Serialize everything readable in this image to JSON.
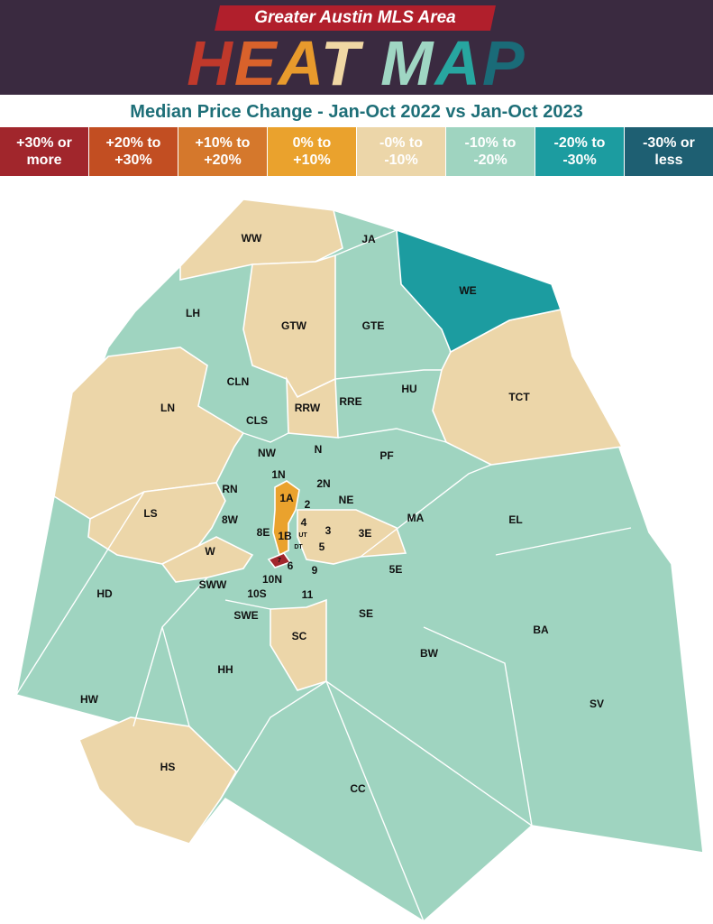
{
  "header": {
    "banner": "Greater Austin MLS Area",
    "title_parts": [
      {
        "text": "H",
        "color": "#c0392b"
      },
      {
        "text": "E",
        "color": "#d9622b"
      },
      {
        "text": "A",
        "color": "#e89a2c"
      },
      {
        "text": "T",
        "color": "#f0d7a4"
      },
      {
        "text": " ",
        "color": "#ffffff"
      },
      {
        "text": "M",
        "color": "#9fd6c3"
      },
      {
        "text": "A",
        "color": "#27a6a0"
      },
      {
        "text": "P",
        "color": "#1a6b78"
      }
    ],
    "subtitle": "Median Price Change - Jan-Oct 2022 vs Jan-Oct 2023"
  },
  "legend": [
    {
      "label": "+30% or\nmore",
      "bg": "#a1262c",
      "fg": "#ffffff"
    },
    {
      "label": "+20% to\n+30%",
      "bg": "#c24e22",
      "fg": "#ffffff"
    },
    {
      "label": "+10% to\n+20%",
      "bg": "#d5782c",
      "fg": "#ffffff"
    },
    {
      "label": "0% to\n+10%",
      "bg": "#eaa22d",
      "fg": "#ffffff"
    },
    {
      "label": "-0% to\n-10%",
      "bg": "#ecd6a9",
      "fg": "#ffffff"
    },
    {
      "label": "-10% to\n-20%",
      "bg": "#9fd4c0",
      "fg": "#ffffff"
    },
    {
      "label": "-20% to\n-30%",
      "bg": "#1c9ca0",
      "fg": "#ffffff"
    },
    {
      "label": "-30% or\nless",
      "bg": "#1e5f72",
      "fg": "#ffffff"
    }
  ],
  "colors": {
    "teal_light": "#9fd4c0",
    "tan": "#ecd6a9",
    "teal_dark": "#1c9ca0",
    "orange": "#eaa22d",
    "dark_red": "#a1262c"
  },
  "regions": [
    {
      "label": "WW",
      "color": "tan"
    },
    {
      "label": "JA",
      "color": "teal_light"
    },
    {
      "label": "WE",
      "color": "teal_dark"
    },
    {
      "label": "LH",
      "color": "teal_light"
    },
    {
      "label": "GTW",
      "color": "tan"
    },
    {
      "label": "GTE",
      "color": "teal_light"
    },
    {
      "label": "TCT",
      "color": "tan"
    },
    {
      "label": "CLN",
      "color": "teal_light"
    },
    {
      "label": "LN",
      "color": "tan"
    },
    {
      "label": "RRW",
      "color": "tan"
    },
    {
      "label": "RRE",
      "color": "teal_light"
    },
    {
      "label": "HU",
      "color": "teal_light"
    },
    {
      "label": "CLS",
      "color": "teal_light"
    },
    {
      "label": "NW",
      "color": "teal_light"
    },
    {
      "label": "N",
      "color": "teal_light"
    },
    {
      "label": "PF",
      "color": "teal_light"
    },
    {
      "label": "1N",
      "color": "teal_light"
    },
    {
      "label": "2N",
      "color": "teal_light"
    },
    {
      "label": "RN",
      "color": "teal_light"
    },
    {
      "label": "1A",
      "color": "orange"
    },
    {
      "label": "2",
      "color": "teal_light"
    },
    {
      "label": "NE",
      "color": "teal_light"
    },
    {
      "label": "LS",
      "color": "tan"
    },
    {
      "label": "8W",
      "color": "teal_light"
    },
    {
      "label": "4",
      "color": "tan"
    },
    {
      "label": "MA",
      "color": "teal_light"
    },
    {
      "label": "EL",
      "color": "teal_light"
    },
    {
      "label": "8E",
      "color": "teal_light"
    },
    {
      "label": "1B",
      "color": "orange"
    },
    {
      "label": "UT",
      "color": "tan"
    },
    {
      "label": "3",
      "color": "tan"
    },
    {
      "label": "3E",
      "color": "tan"
    },
    {
      "label": "DT",
      "color": "tan"
    },
    {
      "label": "5",
      "color": "tan"
    },
    {
      "label": "W",
      "color": "tan"
    },
    {
      "label": "7",
      "color": "dark_red"
    },
    {
      "label": "6",
      "color": "teal_light"
    },
    {
      "label": "9",
      "color": "teal_light"
    },
    {
      "label": "5E",
      "color": "teal_light"
    },
    {
      "label": "SWW",
      "color": "teal_light"
    },
    {
      "label": "10N",
      "color": "teal_light"
    },
    {
      "label": "HD",
      "color": "teal_light"
    },
    {
      "label": "10S",
      "color": "teal_light"
    },
    {
      "label": "11",
      "color": "teal_light"
    },
    {
      "label": "SWE",
      "color": "teal_light"
    },
    {
      "label": "SE",
      "color": "teal_light"
    },
    {
      "label": "BA",
      "color": "teal_light"
    },
    {
      "label": "SC",
      "color": "tan"
    },
    {
      "label": "BW",
      "color": "teal_light"
    },
    {
      "label": "HH",
      "color": "teal_light"
    },
    {
      "label": "HW",
      "color": "teal_light"
    },
    {
      "label": "SV",
      "color": "teal_light"
    },
    {
      "label": "HS",
      "color": "tan"
    },
    {
      "label": "CC",
      "color": "teal_light"
    }
  ]
}
